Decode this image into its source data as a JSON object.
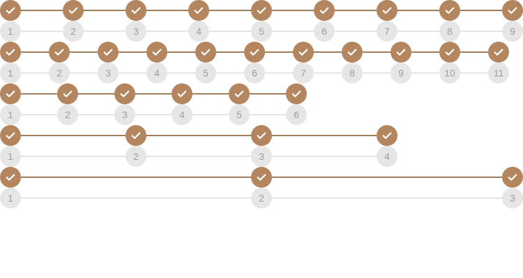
{
  "colors": {
    "accent": "#b3865f",
    "done_line": "#a07e5c",
    "todo_line": "#e6e6e6",
    "number_bg": "#e6e6e6",
    "number_text": "#9e9e9e"
  },
  "icons": {
    "step_complete": "checkmark-icon"
  },
  "steppers": [
    {
      "completed": 9,
      "labels": [
        "1",
        "2",
        "3",
        "4",
        "5",
        "6",
        "7",
        "8",
        "9"
      ]
    },
    {
      "completed": 11,
      "labels": [
        "1",
        "2",
        "3",
        "4",
        "5",
        "6",
        "7",
        "8",
        "9",
        "10",
        "11"
      ]
    },
    {
      "completed": 6,
      "labels": [
        "1",
        "2",
        "3",
        "4",
        "5",
        "6"
      ]
    },
    {
      "completed": 4,
      "labels": [
        "1",
        "2",
        "3",
        "4"
      ]
    },
    {
      "completed": 3,
      "labels": [
        "1",
        "2",
        "3"
      ]
    }
  ]
}
